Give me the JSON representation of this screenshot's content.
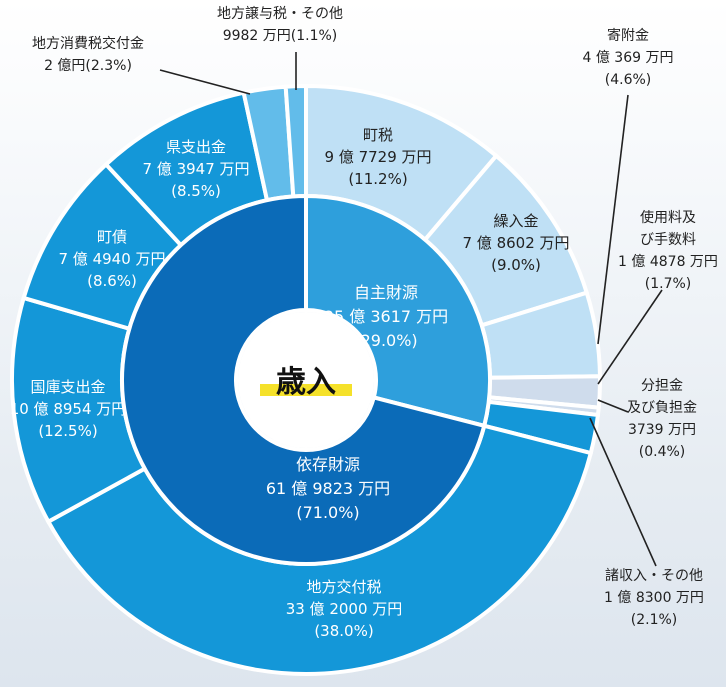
{
  "chart_data": {
    "type": "pie",
    "title": "歳入",
    "inner": [
      {
        "name": "自主財源",
        "amount": "25 億 3617 万円",
        "percent": "(29.0%)",
        "value": 29.0,
        "color": "#2e9fdc"
      },
      {
        "name": "依存財源",
        "amount": "61 億 9823 万円",
        "percent": "(71.0%)",
        "value": 71.0,
        "color": "#0b6bb8"
      }
    ],
    "outer": [
      {
        "name": "町税",
        "amount": "9 億 7729 万円",
        "percent": "(11.2%)",
        "value": 11.2,
        "color": "#bfe0f5"
      },
      {
        "name": "繰入金",
        "amount": "7 億 8602 万円",
        "percent": "(9.0%)",
        "value": 9.0,
        "color": "#bfe0f5"
      },
      {
        "name": "寄附金",
        "amount": "4 億 369 万円",
        "percent": "(4.6%)",
        "value": 4.6,
        "color": "#bfe0f5"
      },
      {
        "name": "使用料及び手数料",
        "amount": "1 億 4878 万円",
        "percent": "(1.7%)",
        "value": 1.7,
        "color": "#cfdcec"
      },
      {
        "name": "分担金及び負担金",
        "amount": "3739 万円",
        "percent": "(0.4%)",
        "value": 0.4,
        "color": "#cfdcec"
      },
      {
        "name": "諸収入・その他",
        "amount": "1 億 8300 万円",
        "percent": "(2.1%)",
        "value": 2.1,
        "color": "#1497d8"
      },
      {
        "name": "地方交付税",
        "amount": "33 億 2000 万円",
        "percent": "(38.0%)",
        "value": 38.0,
        "color": "#1497d8"
      },
      {
        "name": "国庫支出金",
        "amount": "10 億 8954 万円",
        "percent": "(12.5%)",
        "value": 12.5,
        "color": "#1497d8"
      },
      {
        "name": "町債",
        "amount": "7 億 4940 万円",
        "percent": "(8.6%)",
        "value": 8.6,
        "color": "#1497d8"
      },
      {
        "name": "県支出金",
        "amount": "7 億 3947 万円",
        "percent": "(8.5%)",
        "value": 8.5,
        "color": "#1497d8"
      },
      {
        "name": "地方消費税交付金",
        "amount": "2 億円",
        "percent": "(2.3%)",
        "value": 2.3,
        "color": "#62bcea"
      },
      {
        "name": "地方譲与税・その他",
        "amount": "9982 万円",
        "percent": "(1.1%)",
        "value": 1.1,
        "color": "#62bcea"
      }
    ]
  }
}
